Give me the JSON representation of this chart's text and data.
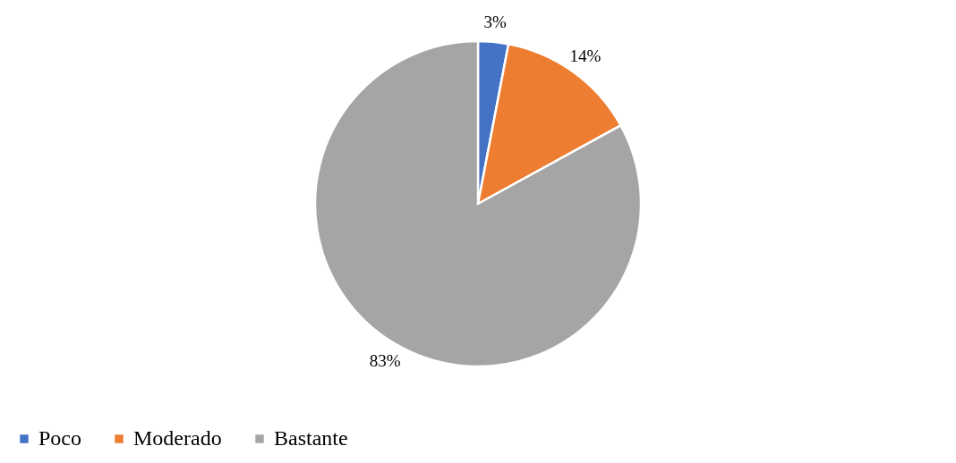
{
  "chart_data": {
    "type": "pie",
    "categories": [
      "Poco",
      "Moderado",
      "Bastante"
    ],
    "values": [
      3,
      14,
      83
    ],
    "colors": [
      "#4472c4",
      "#ed7d31",
      "#a5a5a5"
    ],
    "value_labels": [
      "3%",
      "14%",
      "83%"
    ],
    "legend": "bottom"
  }
}
